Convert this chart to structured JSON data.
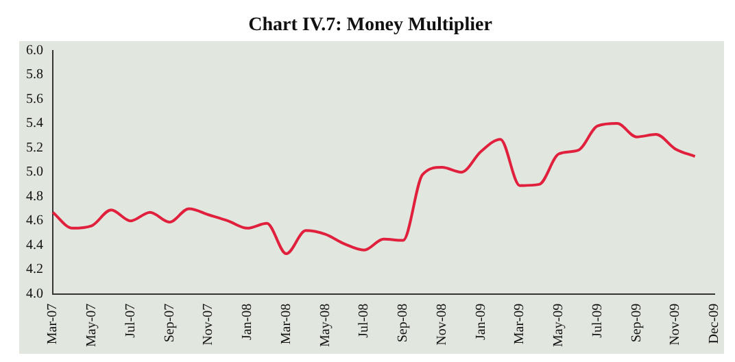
{
  "chart_data": {
    "type": "line",
    "title": "Chart IV.7: Money Multiplier",
    "categories": [
      "Mar-07",
      null,
      "May-07",
      null,
      "Jul-07",
      null,
      "Sep-07",
      null,
      "Nov-07",
      null,
      "Jan-08",
      null,
      "Mar-08",
      null,
      "May-08",
      null,
      "Jul-08",
      null,
      "Sep-08",
      null,
      "Nov-08",
      null,
      "Jan-09",
      null,
      "Mar-09",
      null,
      "May-09",
      null,
      "Jul-09",
      null,
      "Sep-09",
      null,
      "Nov-09",
      null,
      "Dec-09"
    ],
    "series": [
      {
        "color": "#e0203c",
        "values": [
          4.67,
          4.54,
          4.56,
          4.69,
          4.6,
          4.67,
          4.59,
          4.7,
          4.65,
          4.6,
          4.54,
          4.58,
          4.33,
          4.52,
          4.49,
          4.41,
          4.36,
          4.45,
          4.44,
          4.98,
          5.04,
          5.0,
          5.17,
          5.27,
          4.89,
          4.9,
          5.15,
          5.18,
          5.38,
          5.4,
          5.29,
          5.31,
          5.19,
          5.13,
          null
        ]
      }
    ],
    "ylim": [
      4,
      6
    ],
    "yticks": [
      {
        "value": 4,
        "label": "4.0"
      },
      4.2,
      4.4,
      4.6,
      4.8,
      {
        "value": 5,
        "label": "5.0"
      },
      5.2,
      5.4,
      5.6,
      5.8,
      {
        "value": 6,
        "label": "6.0"
      }
    ],
    "grid": false,
    "legend": false,
    "marker": "none",
    "line_style": "solid"
  }
}
